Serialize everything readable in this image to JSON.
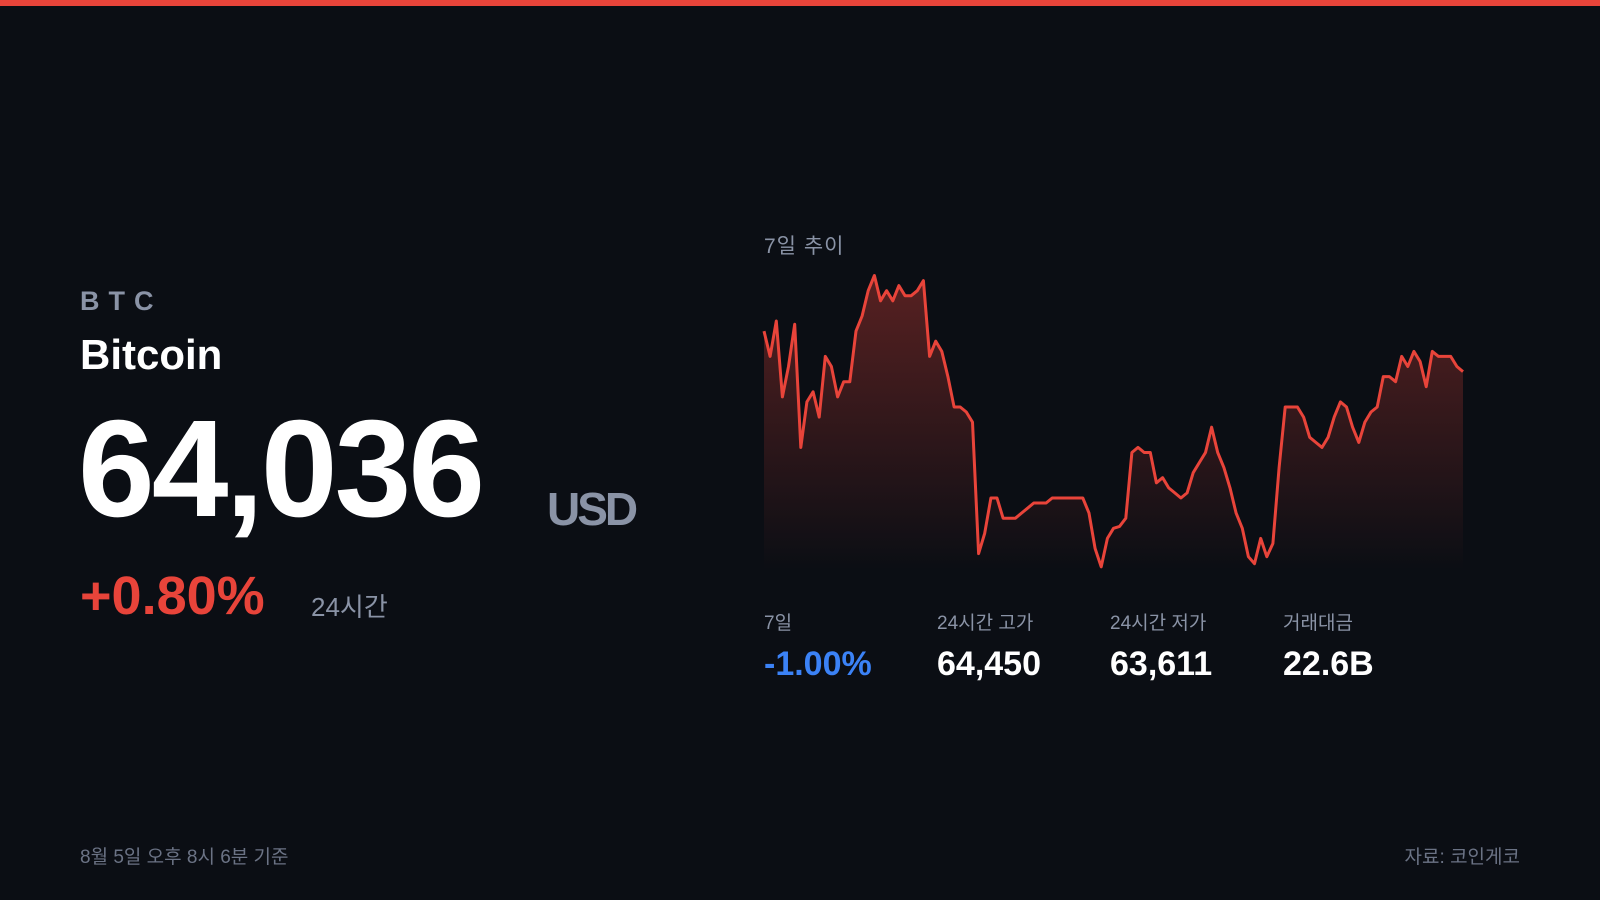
{
  "asset": {
    "symbol": "BTC",
    "name": "Bitcoin",
    "price": "64,036",
    "currency": "USD",
    "change": "+0.80%",
    "change_period": "24시간"
  },
  "chart_data": {
    "type": "area",
    "title": "7일 추이",
    "color": "#e8443a",
    "ylim": [
      60900,
      65600
    ],
    "values": [
      64680,
      64280,
      64840,
      63640,
      64120,
      64790,
      62840,
      63560,
      63720,
      63320,
      64280,
      64120,
      63640,
      63880,
      63880,
      64680,
      64920,
      65320,
      65560,
      65160,
      65320,
      65160,
      65400,
      65240,
      65240,
      65320,
      65480,
      64280,
      64520,
      64360,
      63960,
      63480,
      63480,
      63400,
      63240,
      61160,
      61480,
      62040,
      62040,
      61720,
      61720,
      61720,
      61800,
      61880,
      61960,
      61960,
      61960,
      62040,
      62040,
      62040,
      62040,
      62040,
      62040,
      61800,
      61240,
      60950,
      61400,
      61560,
      61590,
      61720,
      62760,
      62840,
      62760,
      62760,
      62280,
      62360,
      62200,
      62120,
      62040,
      62120,
      62440,
      62600,
      62760,
      63160,
      62760,
      62520,
      62200,
      61800,
      61560,
      61110,
      61000,
      61400,
      61110,
      61320,
      62520,
      63480,
      63480,
      63480,
      63320,
      63000,
      62920,
      62840,
      63000,
      63320,
      63560,
      63480,
      63160,
      62920,
      63240,
      63400,
      63480,
      63960,
      63960,
      63880,
      64280,
      64120,
      64360,
      64200,
      63800,
      64360,
      64280,
      64280,
      64280,
      64120,
      64040
    ]
  },
  "stats": [
    {
      "label": "7일",
      "value": "-1.00%"
    },
    {
      "label": "24시간 고가",
      "value": "64,450"
    },
    {
      "label": "24시간 저가",
      "value": "63,611"
    },
    {
      "label": "거래대금",
      "value": "22.6B"
    }
  ],
  "footer": {
    "timestamp": "8월 5일 오후 8시 6분 기준",
    "source": "자료: 코인게코"
  }
}
